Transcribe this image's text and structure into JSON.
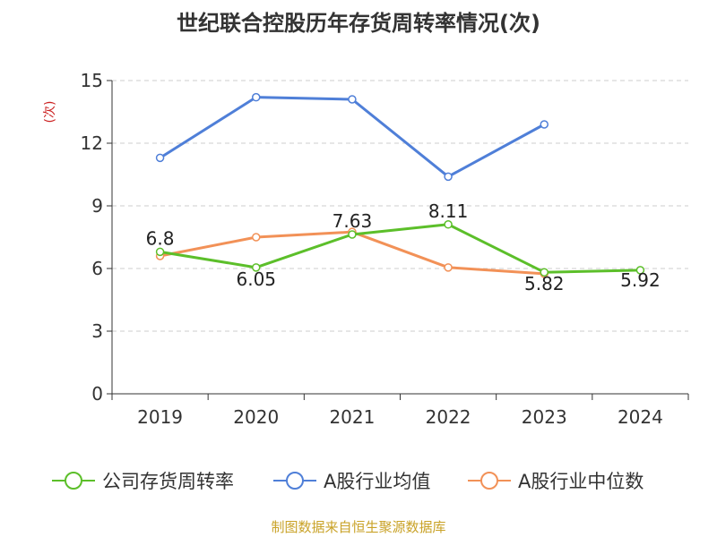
{
  "title": "世纪联合控股历年存货周转率情况(次)",
  "footer": "制图数据来自恒生聚源数据库",
  "colors": {
    "company": "#5cbf2a",
    "industry_avg": "#4f7fd8",
    "industry_median": "#f29157",
    "grid": "#cccccc",
    "axis": "#333333"
  },
  "chart_data": {
    "type": "line",
    "title": "世纪联合控股历年存货周转率情况(次)",
    "ylabel": "(次)",
    "xlabel": "",
    "categories": [
      "2019",
      "2020",
      "2021",
      "2022",
      "2023",
      "2024"
    ],
    "yticks": [
      "0",
      "3",
      "6",
      "9",
      "12",
      "15"
    ],
    "ylim": [
      0,
      15
    ],
    "grid": true,
    "legend_position": "bottom",
    "series": [
      {
        "name": "公司存货周转率",
        "color": "#5cbf2a",
        "values": [
          6.8,
          6.05,
          7.63,
          8.11,
          5.82,
          5.92
        ],
        "labels": [
          "6.8",
          "6.05",
          "7.63",
          "8.11",
          "5.82",
          "5.92"
        ]
      },
      {
        "name": "A股行业均值",
        "color": "#4f7fd8",
        "values": [
          11.3,
          14.2,
          14.1,
          10.4,
          12.9,
          null
        ]
      },
      {
        "name": "A股行业中位数",
        "color": "#f29157",
        "values": [
          6.6,
          7.5,
          7.75,
          6.05,
          5.75,
          null
        ]
      }
    ]
  }
}
